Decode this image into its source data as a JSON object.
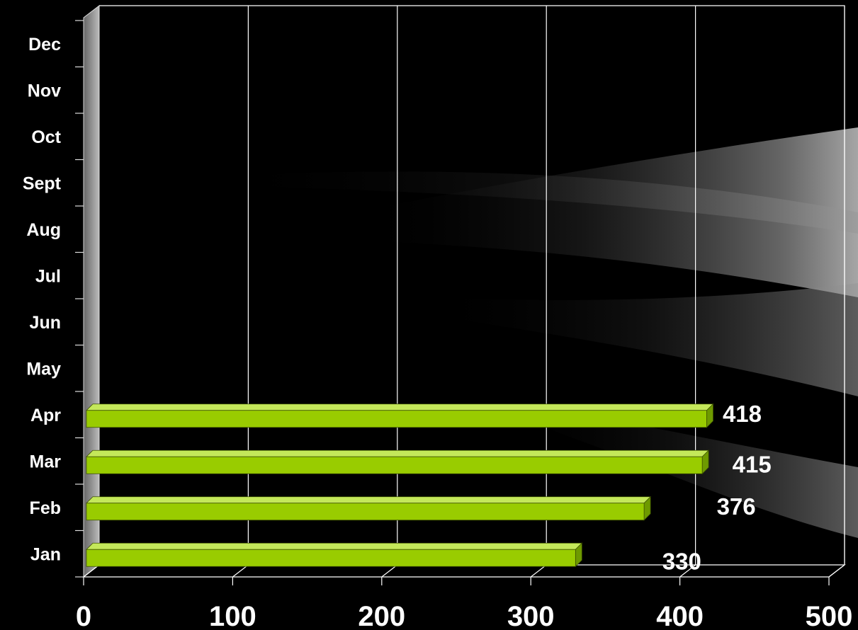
{
  "chart_data": {
    "type": "bar",
    "orientation": "horizontal",
    "style": "3d",
    "categories": [
      "Jan",
      "Feb",
      "Mar",
      "Apr",
      "May",
      "Jun",
      "Jul",
      "Aug",
      "Sept",
      "Oct",
      "Nov",
      "Dec"
    ],
    "series": [
      {
        "values": [
          330,
          376,
          415,
          418,
          null,
          null,
          null,
          null,
          null,
          null,
          null,
          null
        ]
      }
    ],
    "data_labels": [
      "330",
      "376",
      "415",
      "418"
    ],
    "xlim": [
      0,
      500
    ],
    "xticks": [
      0,
      100,
      200,
      300,
      400,
      500
    ],
    "xtick_labels": [
      "0",
      "100",
      "200",
      "300",
      "400",
      "500"
    ],
    "grid": "vertical",
    "legend": "none",
    "title": "",
    "xlabel": "",
    "ylabel": ""
  },
  "colors": {
    "background": "#000000",
    "bar_front": "#99cc00",
    "bar_top": "#c4e85a",
    "bar_side": "#6e9a00",
    "gridline": "#ffffff",
    "text": "#ffffff"
  }
}
